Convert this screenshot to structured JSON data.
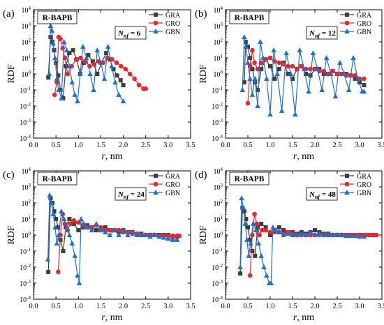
{
  "figure": {
    "description_free": true
  },
  "chart_data": [
    {
      "type": "line",
      "panel_label": "(a)",
      "title": "R-BAPB",
      "annotation": {
        "symbol": "N",
        "subscript": "nf",
        "value": "= 6"
      },
      "xlabel": "r, nm",
      "ylabel": "RDF",
      "xlim": [
        0.0,
        3.5
      ],
      "ylim_log10": [
        -4,
        4
      ],
      "y_scale": "log",
      "x_ticks": [
        "0.0",
        "0.5",
        "1.0",
        "1.5",
        "2.0",
        "2.5",
        "3.0",
        "3.5"
      ],
      "y_ticks": [
        "10-4",
        "10-3",
        "10-2",
        "10-1",
        "100",
        "101",
        "102",
        "103",
        "104"
      ],
      "legend": "top-right",
      "series": [
        {
          "name": "GRA",
          "color": "#3d3d3d",
          "marker": "square",
          "x": [
            0.33,
            0.38,
            0.42,
            0.46,
            0.5,
            0.55,
            0.6,
            0.66,
            0.72,
            0.8,
            0.88,
            0.96,
            1.04,
            1.12,
            1.22,
            1.32,
            1.42,
            1.52,
            1.62,
            1.7,
            1.78,
            1.86,
            1.94,
            2.0
          ],
          "y": [
            0.6,
            200,
            100,
            30,
            5,
            0.8,
            0.1,
            0.03,
            3,
            20,
            30,
            8,
            1,
            5,
            15,
            6,
            1,
            5,
            20,
            8,
            2,
            0.8,
            0.4,
            0.2
          ]
        },
        {
          "name": "GRO",
          "color": "#e8262b",
          "marker": "circle",
          "x": [
            0.47,
            0.52,
            0.56,
            0.6,
            0.65,
            0.7,
            0.76,
            0.85,
            0.95,
            1.05,
            1.15,
            1.25,
            1.35,
            1.45,
            1.55,
            1.65,
            1.75,
            1.85,
            1.95,
            2.05,
            2.15,
            2.25,
            2.35,
            2.45,
            2.5
          ],
          "y": [
            0.05,
            0.3,
            200,
            150,
            40,
            10,
            1,
            3,
            8,
            10,
            6,
            3,
            4,
            6,
            5,
            10,
            8,
            5,
            3,
            2,
            1,
            0.5,
            0.2,
            0.12,
            0.12
          ]
        },
        {
          "name": "GBN",
          "color": "#1f6fd0",
          "marker": "triangle",
          "x": [
            0.35,
            0.38,
            0.41,
            0.44,
            0.48,
            0.52,
            0.56,
            0.62,
            0.68,
            0.74,
            0.8,
            0.86,
            0.92,
            0.98,
            1.04,
            1.1,
            1.18,
            1.26,
            1.34,
            1.42,
            1.5,
            1.58,
            1.66,
            1.74,
            1.82,
            1.9,
            2.0
          ],
          "y": [
            1,
            1000,
            500,
            80,
            10,
            0.5,
            0.1,
            0.03,
            100,
            30,
            3,
            0.3,
            0.05,
            0.02,
            1,
            50,
            10,
            1,
            0.1,
            30,
            5,
            0.5,
            50,
            3,
            0.3,
            0.05,
            0.02
          ]
        }
      ]
    },
    {
      "type": "line",
      "panel_label": "(b)",
      "title": "R-BAPB",
      "annotation": {
        "symbol": "N",
        "subscript": "nf",
        "value": "= 12"
      },
      "xlabel": "r, nm",
      "ylabel": "RDF",
      "xlim": [
        0.0,
        3.5
      ],
      "ylim_log10": [
        -4,
        4
      ],
      "y_scale": "log",
      "x_ticks": [
        "0.0",
        "0.5",
        "1.0",
        "1.5",
        "2.0",
        "2.5",
        "3.0",
        "3.5"
      ],
      "y_ticks": [
        "10-4",
        "10-3",
        "10-2",
        "10-1",
        "100",
        "101",
        "102",
        "103",
        "104"
      ],
      "legend": "top-right",
      "series": [
        {
          "name": "GRA",
          "color": "#3d3d3d",
          "marker": "square",
          "x": [
            0.42,
            0.45,
            0.5,
            0.55,
            0.6,
            0.66,
            0.72,
            0.8,
            0.9,
            1.0,
            1.1,
            1.2,
            1.3,
            1.4,
            1.5,
            1.6,
            1.7,
            1.8,
            1.9,
            2.0,
            2.1,
            2.2,
            2.3,
            2.4,
            2.5,
            2.6,
            2.7,
            2.8,
            2.9,
            3.0,
            3.1
          ],
          "y": [
            0.3,
            100,
            50,
            10,
            2,
            0.3,
            0.1,
            2,
            8,
            3,
            0.5,
            2,
            5,
            1,
            0.5,
            2,
            3,
            1,
            0.8,
            2,
            2,
            1,
            1,
            1.5,
            1,
            1,
            1,
            0.8,
            0.5,
            0.3,
            0.2
          ]
        },
        {
          "name": "GRO",
          "color": "#e8262b",
          "marker": "circle",
          "x": [
            0.5,
            0.55,
            0.6,
            0.65,
            0.72,
            0.8,
            0.9,
            1.0,
            1.1,
            1.2,
            1.3,
            1.4,
            1.5,
            1.6,
            1.7,
            1.8,
            1.9,
            2.0,
            2.1,
            2.2,
            2.3,
            2.4,
            2.5,
            2.6,
            2.7,
            2.8,
            2.9,
            3.0,
            3.1
          ],
          "y": [
            0.015,
            3,
            30,
            5,
            2,
            5,
            8,
            10,
            6,
            5,
            4,
            3,
            3,
            2,
            3,
            2,
            2,
            2,
            1.5,
            1.5,
            1,
            1.5,
            1,
            1,
            0.8,
            0.8,
            0.8,
            0.5,
            0.5
          ]
        },
        {
          "name": "GBN",
          "color": "#1f6fd0",
          "marker": "triangle",
          "x": [
            0.38,
            0.42,
            0.46,
            0.5,
            0.55,
            0.6,
            0.66,
            0.72,
            0.78,
            0.84,
            0.92,
            1.0,
            1.08,
            1.16,
            1.26,
            1.36,
            1.46,
            1.56,
            1.66,
            1.76,
            1.86,
            1.96,
            2.06,
            2.16,
            2.26,
            2.36,
            2.46,
            2.56,
            2.66,
            2.76,
            2.86,
            2.96,
            3.06,
            3.1
          ],
          "y": [
            0.1,
            200,
            50,
            5,
            0.5,
            0.05,
            0.5,
            0.01,
            100,
            10,
            0.5,
            0.003,
            30,
            1,
            0.005,
            20,
            1,
            0.003,
            30,
            2,
            0.08,
            20,
            2,
            0.1,
            10,
            1,
            0.04,
            5,
            1,
            0.1,
            10,
            0.5,
            0.08,
            0.08
          ]
        }
      ]
    },
    {
      "type": "line",
      "panel_label": "(c)",
      "title": "R-BAPB",
      "annotation": {
        "symbol": "N",
        "subscript": "nf",
        "value": "= 24"
      },
      "xlabel": "r, nm",
      "ylabel": "RDF",
      "xlim": [
        0.0,
        3.5
      ],
      "ylim_log10": [
        -4,
        4
      ],
      "y_scale": "log",
      "x_ticks": [
        "0.0",
        "0.5",
        "1.0",
        "1.5",
        "2.0",
        "2.5",
        "3.0",
        "3.5"
      ],
      "y_ticks": [
        "10-4",
        "10-3",
        "10-2",
        "10-1",
        "100",
        "101",
        "102",
        "103",
        "104"
      ],
      "legend": "top-right",
      "series": [
        {
          "name": "GRA",
          "color": "#3d3d3d",
          "marker": "square",
          "x": [
            0.33,
            0.38,
            0.42,
            0.46,
            0.5,
            0.55,
            0.6,
            0.66,
            0.72,
            0.8,
            0.9,
            1.0,
            1.1,
            1.2,
            1.3,
            1.4,
            1.5,
            1.6,
            1.7,
            1.8,
            1.9,
            2.0,
            2.1,
            2.2,
            2.3,
            2.4,
            2.5,
            2.6,
            2.7,
            2.8,
            2.9,
            3.0,
            3.1,
            3.2
          ],
          "y": [
            0.005,
            200,
            100,
            30,
            10,
            3,
            0.5,
            0.1,
            3,
            10,
            5,
            2,
            3,
            4,
            3,
            2,
            2,
            3,
            2,
            2,
            1.5,
            2,
            1.5,
            1.5,
            1.2,
            1.2,
            1,
            1,
            1,
            1,
            1,
            1,
            0.8,
            0.8
          ]
        },
        {
          "name": "GRO",
          "color": "#e8262b",
          "marker": "circle",
          "x": [
            0.55,
            0.6,
            0.65,
            0.7,
            0.76,
            0.82,
            0.9,
            1.0,
            1.1,
            1.2,
            1.3,
            1.4,
            1.5,
            1.6,
            1.7,
            1.8,
            1.9,
            2.0,
            2.1,
            2.2,
            2.3,
            2.4,
            2.5,
            2.6,
            2.7,
            2.8,
            2.9,
            3.0,
            3.1,
            3.2,
            3.25
          ],
          "y": [
            0.005,
            1,
            20,
            5,
            2,
            5,
            8,
            6,
            4,
            3,
            3,
            4,
            3,
            2,
            2,
            2,
            2,
            1.5,
            1.5,
            1.2,
            1.2,
            1,
            1,
            1,
            1,
            0.9,
            0.9,
            0.9,
            0.9,
            0.9,
            0.9
          ]
        },
        {
          "name": "GBN",
          "color": "#1f6fd0",
          "marker": "triangle",
          "x": [
            0.32,
            0.36,
            0.4,
            0.44,
            0.48,
            0.52,
            0.56,
            0.62,
            0.68,
            0.74,
            0.8,
            0.86,
            0.92,
            0.98,
            1.02,
            1.06,
            1.12,
            1.2,
            1.3,
            1.4,
            1.5,
            1.6,
            1.7,
            1.8,
            1.9,
            2.0,
            2.1,
            2.2,
            2.3,
            2.4,
            2.5,
            2.6,
            2.7,
            2.8,
            2.9,
            3.0,
            3.1,
            3.2
          ],
          "y": [
            0.03,
            300,
            100,
            20,
            3,
            0.3,
            1,
            30,
            10,
            3,
            1,
            0.3,
            0.05,
            0.003,
            0.001,
            10,
            5,
            3,
            2,
            5,
            2,
            1.5,
            1,
            2,
            1,
            2,
            1,
            1.5,
            1,
            1,
            1,
            0.8,
            1,
            0.8,
            0.7,
            0.6,
            0.5,
            0.5
          ]
        }
      ]
    },
    {
      "type": "line",
      "panel_label": "(d)",
      "title": "R-BAPB",
      "annotation": {
        "symbol": "N",
        "subscript": "nf",
        "value": "= 48"
      },
      "xlabel": "r, nm",
      "ylabel": "RDF",
      "xlim": [
        0.0,
        3.5
      ],
      "ylim_log10": [
        -4,
        4
      ],
      "y_scale": "log",
      "x_ticks": [
        "0.0",
        "0.5",
        "1.0",
        "1.5",
        "2.0",
        "2.5",
        "3.0",
        "3.5"
      ],
      "y_ticks": [
        "10-4",
        "10-3",
        "10-2",
        "10-1",
        "100",
        "101",
        "102",
        "103",
        "104"
      ],
      "legend": "top-right",
      "series": [
        {
          "name": "GRA",
          "color": "#3d3d3d",
          "marker": "square",
          "x": [
            0.33,
            0.38,
            0.42,
            0.46,
            0.5,
            0.55,
            0.6,
            0.66,
            0.72,
            0.8,
            0.9,
            1.0,
            1.1,
            1.2,
            1.3,
            1.4,
            1.5,
            1.6,
            1.7,
            1.8,
            1.9,
            2.0,
            2.1,
            2.2,
            2.3,
            2.4,
            2.5,
            2.6,
            2.7,
            2.8,
            2.9,
            3.0,
            3.1,
            3.2,
            3.3
          ],
          "y": [
            0.004,
            50,
            30,
            10,
            3,
            0.5,
            0.1,
            0.05,
            3,
            5,
            3,
            1,
            2,
            3,
            2,
            1.5,
            1.5,
            1.2,
            1.5,
            1.2,
            1.5,
            2,
            1.5,
            1.2,
            1.2,
            1,
            1,
            1,
            1,
            1,
            1,
            1,
            1,
            1,
            1
          ]
        },
        {
          "name": "GRO",
          "color": "#e8262b",
          "marker": "circle",
          "x": [
            0.55,
            0.6,
            0.65,
            0.7,
            0.76,
            0.82,
            0.9,
            1.0,
            1.1,
            1.2,
            1.3,
            1.4,
            1.5,
            1.6,
            1.7,
            1.8,
            1.9,
            2.0,
            2.1,
            2.2,
            2.3,
            2.4,
            2.5,
            2.6,
            2.7,
            2.8,
            2.9,
            3.0,
            3.1,
            3.2,
            3.3,
            3.38
          ],
          "y": [
            0.003,
            1,
            20,
            5,
            1,
            2,
            2,
            1.5,
            1.5,
            1.5,
            1.2,
            1.5,
            1.2,
            1,
            1,
            1,
            1,
            1,
            1,
            1,
            1,
            1,
            1,
            1,
            1,
            1,
            1,
            1,
            1,
            1,
            1,
            1
          ]
        },
        {
          "name": "GBN",
          "color": "#1f6fd0",
          "marker": "triangle",
          "x": [
            0.33,
            0.36,
            0.4,
            0.44,
            0.48,
            0.52,
            0.56,
            0.62,
            0.68,
            0.74,
            0.8,
            0.86,
            0.92,
            0.98,
            1.02,
            1.06,
            1.12,
            1.2,
            1.3,
            1.4,
            1.5,
            1.6,
            1.7,
            1.8,
            1.9,
            2.0,
            2.1,
            2.2,
            2.3,
            2.4,
            2.5,
            2.6,
            2.7,
            2.8,
            2.9,
            3.0,
            3.1
          ],
          "y": [
            0.01,
            200,
            50,
            5,
            0.5,
            0.05,
            0.3,
            5,
            2,
            0.3,
            0.05,
            0.01,
            0.003,
            0.001,
            0.001,
            3,
            2,
            1.5,
            1,
            1.2,
            1,
            1,
            1.2,
            1,
            1.5,
            1,
            1.2,
            1,
            1,
            1,
            1,
            1,
            0.9,
            0.9,
            0.9,
            0.8,
            0.8
          ]
        }
      ]
    }
  ]
}
